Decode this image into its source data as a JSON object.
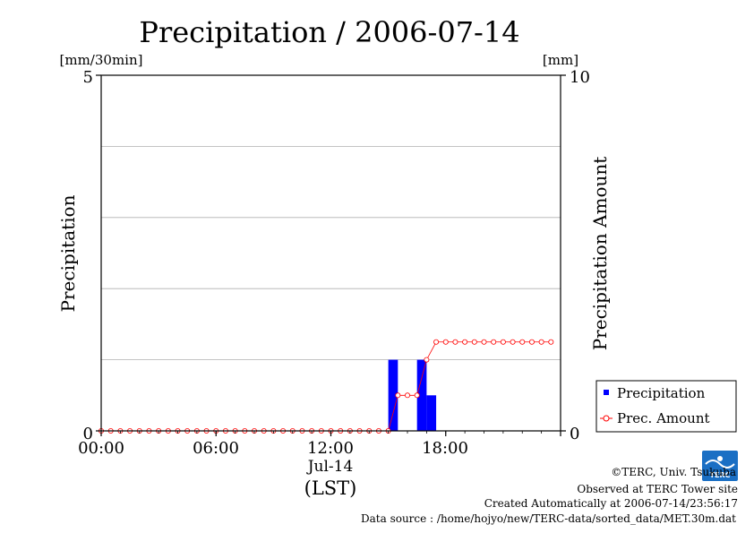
{
  "chart_data": {
    "type": "bar",
    "title": "Precipitation / 2006-07-14",
    "xlabel": "(LST)",
    "date_label": "Jul-14",
    "ylabel": "Precipitation",
    "ylabel_right": "Precipitation Amount",
    "yunit_left": "[mm/30min]",
    "yunit_right": "[mm]",
    "ylim": [
      0,
      5
    ],
    "ylim_right": [
      0,
      10
    ],
    "y_ticks": [
      "0",
      "5"
    ],
    "y_right_ticks": [
      "0",
      "10"
    ],
    "x_tick_labels": [
      "00:00",
      "06:00",
      "12:00",
      "18:00"
    ],
    "grid": true,
    "legend_position": "bottom-right",
    "series": [
      {
        "name": "Precipitation",
        "type": "bar",
        "color": "#0000ff",
        "axis": "left",
        "times_hours": [
          15.0,
          16.5,
          17.0
        ],
        "values": [
          1.0,
          1.0,
          0.5
        ]
      },
      {
        "name": "Prec. Amount",
        "type": "line",
        "color": "#ff0000",
        "axis": "right",
        "x_step_hours": 0.5,
        "values": [
          0,
          0,
          0,
          0,
          0,
          0,
          0,
          0,
          0,
          0,
          0,
          0,
          0,
          0,
          0,
          0,
          0,
          0,
          0,
          0,
          0,
          0,
          0,
          0,
          0,
          0,
          0,
          0,
          0,
          0,
          0,
          1,
          1,
          1,
          2,
          2.5,
          2.5,
          2.5,
          2.5,
          2.5,
          2.5,
          2.5,
          2.5,
          2.5,
          2.5,
          2.5,
          2.5,
          2.5
        ]
      }
    ]
  },
  "credits": {
    "copyright": "©TERC, Univ. Tsukuba",
    "observed": "Observed at TERC Tower site",
    "created": "Created Automatically at 2006-07-14/23:56:17",
    "source": "Data source : /home/hojyo/new/TERC-data/sorted_data/MET.30m.dat",
    "logo_text": "TERC"
  }
}
